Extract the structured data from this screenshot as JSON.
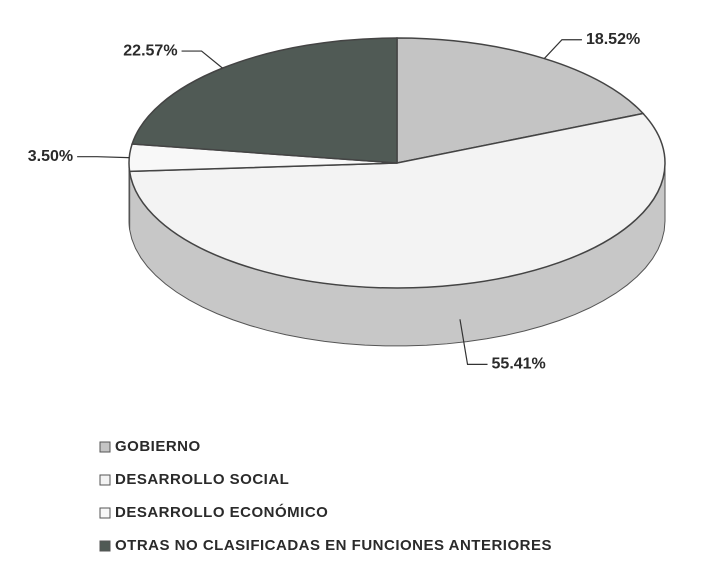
{
  "chart_data": {
    "type": "pie",
    "categories": [
      "GOBIERNO",
      "DESARROLLO SOCIAL",
      "DESARROLLO ECONÓMICO",
      "OTRAS NO CLASIFICADAS EN FUNCIONES ANTERIORES"
    ],
    "values": [
      18.52,
      55.41,
      3.5,
      22.57
    ],
    "value_labels": [
      "18.52%",
      "55.41%",
      "3.50%",
      "22.57%"
    ],
    "colors": [
      "#c4c4c4",
      "#f3f3f3",
      "#f8f8f8",
      "#505a55"
    ],
    "legend": "bottom"
  }
}
